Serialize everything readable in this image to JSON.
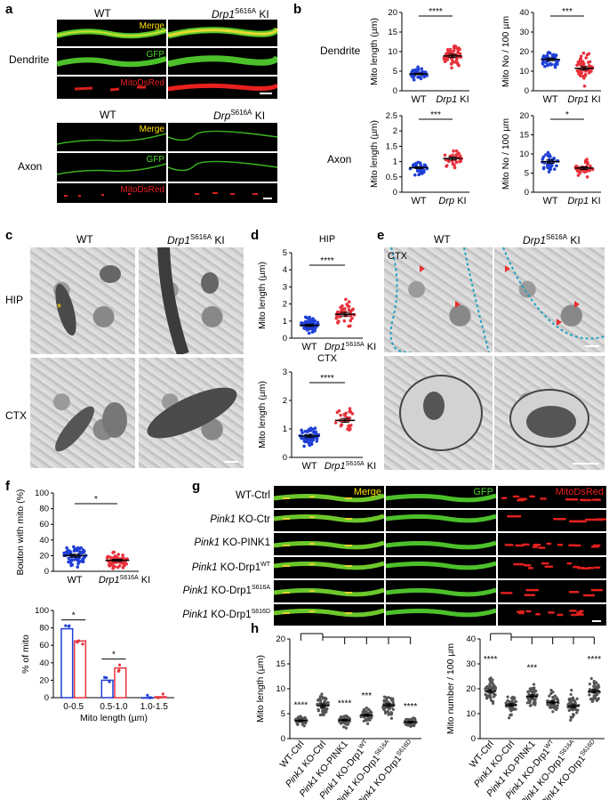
{
  "panels": {
    "a": {
      "label": "a",
      "wt": "WT",
      "ki": "Drp1",
      "ki_sup": "S616A",
      "ki_suffix": " KI",
      "ki_b": "Drp",
      "row_dendrite": "Dendrite",
      "row_axon": "Axon",
      "ch_merge": "Merge",
      "ch_gfp": "GFP",
      "ch_mito": "MitoDsRed"
    },
    "b": {
      "label": "b",
      "row_dendrite": "Dendrite",
      "row_axon": "Axon",
      "y_len": "Mito length (µm)",
      "y_no": "Mito No / 100 µm",
      "x_wt": "WT",
      "x_drp1": "Drp1",
      "x_drp": "Drp",
      "x_ki": " KI",
      "sig": [
        "****",
        "***",
        "***",
        "*"
      ]
    },
    "c": {
      "label": "c",
      "wt": "WT",
      "ki": "Drp1",
      "ki_sup": "S616A",
      "ki_suffix": " KI",
      "hip": "HIP",
      "ctx": "CTX",
      "star": "*"
    },
    "d": {
      "label": "d",
      "title_hip": "HIP",
      "title_ctx": "CTX",
      "y": "Mito length (µm)",
      "x_wt": "WT",
      "x_ki": "Drp1",
      "x_sup": "S616A",
      "x_suffix": " KI",
      "sig": [
        "****",
        "****"
      ]
    },
    "e": {
      "label": "e",
      "wt": "WT",
      "ki": "Drp1",
      "ki_sup": "S616A",
      "ki_suffix": " KI",
      "ctx": "CTX"
    },
    "f": {
      "label": "f",
      "y_top": "Bouton with mito (%)",
      "y_bottom": "% of mito",
      "x_bottom": "Mito length (µm)",
      "x_wt": "WT",
      "x_ki": "Drp1",
      "x_sup": "S616A",
      "x_suffix": " KI",
      "sig_top": "*",
      "sig_bottom": [
        "*",
        "*"
      ]
    },
    "g": {
      "label": "g",
      "rows": [
        {
          "pre": "WT-Ctrl",
          "main": "",
          "sup": ""
        },
        {
          "pre": "Pink1",
          "main": " KO-Ctr",
          "sup": ""
        },
        {
          "pre": "Pink1",
          "main": " KO-PINK1",
          "sup": ""
        },
        {
          "pre": "Pink1",
          "main": " KO-Drp1",
          "sup": "WT"
        },
        {
          "pre": "Pink1",
          "main": " KO-Drp1",
          "sup": "S616A"
        },
        {
          "pre": "Pink1",
          "main": " KO-Drp1",
          "sup": "S616D"
        }
      ],
      "ch_merge": "Merge",
      "ch_gfp": "GFP",
      "ch_mito": "MitoDsRed"
    },
    "h": {
      "label": "h",
      "y_left": "Mito length (µm)",
      "y_right": "Mito number / 100 µm",
      "groups": [
        "WT-Ctrl",
        "Pink1 KO-Ctrl",
        "Pink1 KO-PINK1",
        "Pink1 KO-Drp1WT",
        "Pink1 KO-Drp1S616A",
        "Pink1 KO-Drp1S616D"
      ],
      "sig_left": [
        "****",
        "****",
        "***",
        "****"
      ],
      "sig_right": [
        "****",
        "***",
        "****"
      ]
    }
  },
  "chart_data": [
    {
      "type": "scatter",
      "panel": "b",
      "title": "Dendrite",
      "ylabel": "Mito length (µm)",
      "categories": [
        "WT",
        "Drp1 KI"
      ],
      "ylim": [
        0,
        20
      ],
      "yticks": [
        0,
        5,
        10,
        15,
        20
      ],
      "means": [
        4.3,
        8.9
      ],
      "spread": [
        1.3,
        2.8
      ],
      "n": [
        45,
        55
      ],
      "colors": [
        "#1f3fd6",
        "#e8323c"
      ],
      "significance": "****"
    },
    {
      "type": "scatter",
      "panel": "b",
      "title": "Dendrite",
      "ylabel": "Mito No / 100 µm",
      "categories": [
        "WT",
        "Drp1 KI"
      ],
      "ylim": [
        0,
        40
      ],
      "yticks": [
        0,
        10,
        20,
        30,
        40
      ],
      "means": [
        16,
        11.5
      ],
      "spread": [
        4.5,
        5.5
      ],
      "n": [
        45,
        55
      ],
      "colors": [
        "#1f3fd6",
        "#e8323c"
      ],
      "significance": "***"
    },
    {
      "type": "scatter",
      "panel": "b",
      "title": "Axon",
      "ylabel": "Mito length (µm)",
      "categories": [
        "WT",
        "Drp KI"
      ],
      "ylim": [
        0,
        2.5
      ],
      "yticks": [
        0.0,
        0.5,
        1.0,
        1.5,
        2.0,
        2.5
      ],
      "means": [
        0.8,
        1.1
      ],
      "spread": [
        0.18,
        0.32
      ],
      "n": [
        30,
        30
      ],
      "colors": [
        "#1f3fd6",
        "#e8323c"
      ],
      "significance": "***"
    },
    {
      "type": "scatter",
      "panel": "b",
      "title": "Axon",
      "ylabel": "Mito No / 100 µm",
      "categories": [
        "WT",
        "Drp1 KI"
      ],
      "ylim": [
        0,
        20
      ],
      "yticks": [
        0,
        5,
        10,
        15,
        20
      ],
      "means": [
        8,
        6.3
      ],
      "spread": [
        2.8,
        2.4
      ],
      "n": [
        30,
        30
      ],
      "colors": [
        "#1f3fd6",
        "#e8323c"
      ],
      "significance": "*"
    },
    {
      "type": "scatter",
      "panel": "d",
      "title": "HIP",
      "ylabel": "Mito length (µm)",
      "categories": [
        "WT",
        "Drp1 S616A KI"
      ],
      "ylim": [
        0,
        5
      ],
      "yticks": [
        0,
        1,
        2,
        3,
        4,
        5
      ],
      "means": [
        0.75,
        1.4
      ],
      "spread": [
        0.4,
        0.7
      ],
      "n": [
        70,
        45
      ],
      "colors": [
        "#1f3fd6",
        "#e8323c"
      ],
      "significance": "****"
    },
    {
      "type": "scatter",
      "panel": "d",
      "title": "CTX",
      "ylabel": "Mito length (µm)",
      "categories": [
        "WT",
        "Drp1 S616A KI"
      ],
      "ylim": [
        0,
        3
      ],
      "yticks": [
        0,
        1,
        2,
        3
      ],
      "means": [
        0.75,
        1.3
      ],
      "spread": [
        0.35,
        0.45
      ],
      "n": [
        70,
        30
      ],
      "colors": [
        "#1f3fd6",
        "#e8323c"
      ],
      "significance": "****"
    },
    {
      "type": "scatter",
      "panel": "f",
      "ylabel": "Bouton with mito (%)",
      "categories": [
        "WT",
        "Drp1 S616A KI"
      ],
      "ylim": [
        0,
        100
      ],
      "yticks": [
        0,
        20,
        40,
        60,
        80,
        100
      ],
      "means": [
        20,
        14
      ],
      "spread": [
        13,
        9
      ],
      "n": [
        70,
        60
      ],
      "colors": [
        "#1f3fd6",
        "#e8323c"
      ],
      "significance": "*"
    },
    {
      "type": "bar",
      "panel": "f",
      "ylabel": "% of mito",
      "xlabel": "Mito length (µm)",
      "categories": [
        "0-0.5",
        "0.5-1.0",
        "1.0-1.5"
      ],
      "ylim": [
        0,
        100
      ],
      "yticks": [
        0,
        20,
        40,
        60,
        80,
        100
      ],
      "series": [
        {
          "name": "WT",
          "values": [
            79,
            20,
            0
          ],
          "color": "#1f3fd6"
        },
        {
          "name": "Drp1 S616A KI",
          "values": [
            65,
            34,
            1
          ],
          "color": "#e8323c"
        }
      ],
      "significance": [
        "*",
        "*",
        ""
      ]
    },
    {
      "type": "scatter",
      "panel": "h",
      "ylabel": "Mito length (µm)",
      "categories": [
        "WT-Ctrl",
        "Pink1 KO-Ctrl",
        "Pink1 KO-PINK1",
        "Pink1 KO-Drp1WT",
        "Pink1 KO-Drp1S616A",
        "Pink1 KO-Drp1S616D"
      ],
      "ylim": [
        0,
        20
      ],
      "yticks": [
        0,
        5,
        10,
        15,
        20
      ],
      "means": [
        3.6,
        6.6,
        3.7,
        4.7,
        6.7,
        3.3
      ],
      "spread": [
        1.0,
        2.3,
        1.1,
        1.3,
        2.0,
        1.0
      ],
      "n": [
        50,
        50,
        50,
        50,
        50,
        50
      ],
      "color": "#555555",
      "significance": [
        "****",
        "",
        "****",
        "***",
        "",
        "****"
      ]
    },
    {
      "type": "scatter",
      "panel": "h",
      "ylabel": "Mito number / 100 µm",
      "categories": [
        "WT-Ctrl",
        "Pink1 KO-Ctrl",
        "Pink1 KO-PINK1",
        "Pink1 KO-Drp1WT",
        "Pink1 KO-Drp1S616A",
        "Pink1 KO-Drp1S616D"
      ],
      "ylim": [
        0,
        40
      ],
      "yticks": [
        0,
        10,
        20,
        30,
        40
      ],
      "means": [
        19,
        13.5,
        17,
        14.5,
        13,
        19
      ],
      "spread": [
        4.5,
        3.5,
        4,
        3.5,
        4,
        4.5
      ],
      "n": [
        50,
        50,
        50,
        50,
        50,
        50
      ],
      "color": "#555555",
      "significance": [
        "****",
        "",
        "***",
        "",
        "",
        "****"
      ]
    }
  ]
}
